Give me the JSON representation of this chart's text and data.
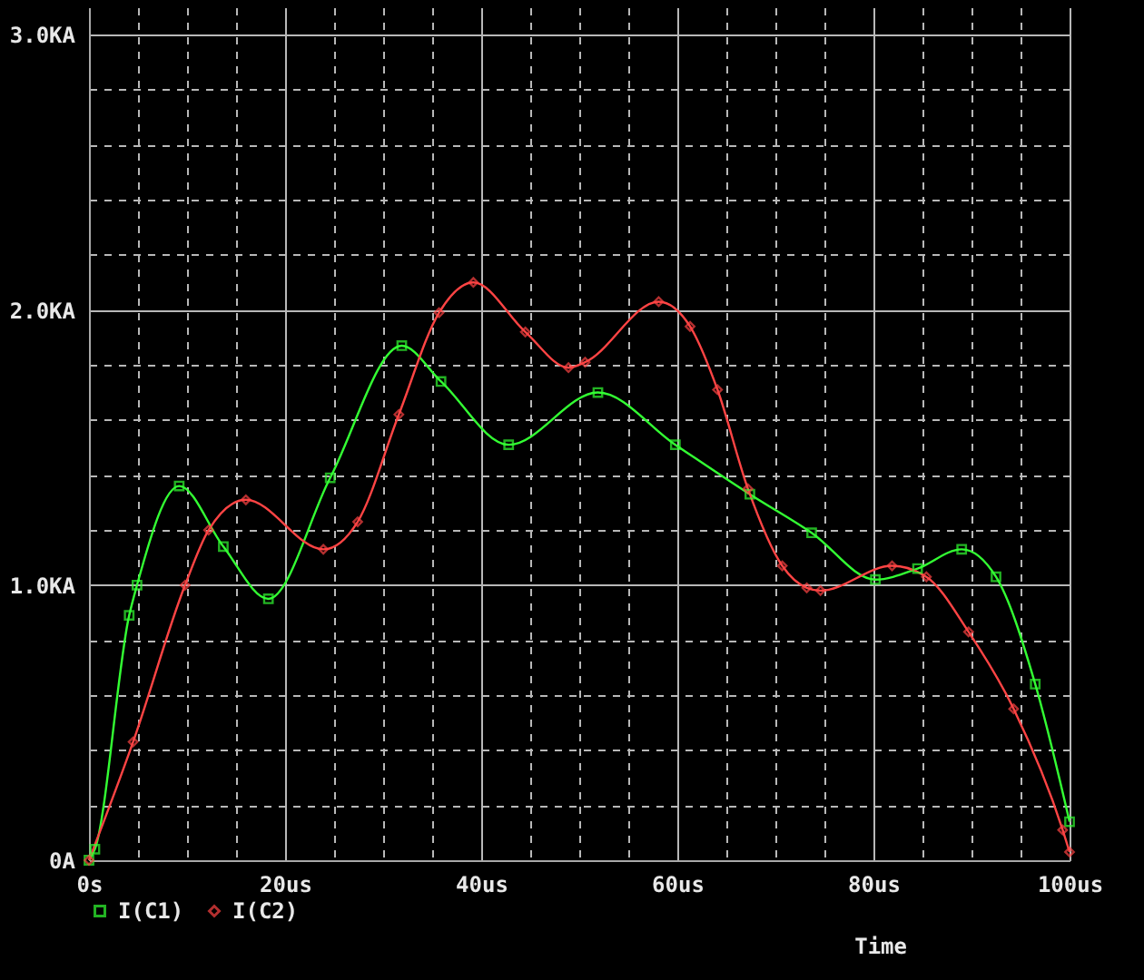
{
  "chart_data": {
    "type": "line",
    "xlabel": "Time",
    "legend": "bottom left",
    "grid": true,
    "line_style": "solid",
    "xlim": [
      0,
      100
    ],
    "ylim": [
      0,
      3.1
    ],
    "xticks": [
      {
        "value": 0,
        "label": "0s"
      },
      {
        "value": 5,
        "label": null
      },
      {
        "value": 10,
        "label": null
      },
      {
        "value": 15,
        "label": null
      },
      {
        "value": 20,
        "label": "20us"
      },
      {
        "value": 25,
        "label": null
      },
      {
        "value": 30,
        "label": null
      },
      {
        "value": 35,
        "label": null
      },
      {
        "value": 40,
        "label": "40us"
      },
      {
        "value": 45,
        "label": null
      },
      {
        "value": 50,
        "label": null
      },
      {
        "value": 55,
        "label": null
      },
      {
        "value": 60,
        "label": "60us"
      },
      {
        "value": 65,
        "label": null
      },
      {
        "value": 70,
        "label": null
      },
      {
        "value": 75,
        "label": null
      },
      {
        "value": 80,
        "label": "80us"
      },
      {
        "value": 85,
        "label": null
      },
      {
        "value": 90,
        "label": null
      },
      {
        "value": 95,
        "label": null
      },
      {
        "value": 100,
        "label": "100us"
      }
    ],
    "yticks": [
      {
        "value": 0,
        "label": "0A"
      },
      {
        "value": 0.2,
        "label": null
      },
      {
        "value": 0.4,
        "label": null
      },
      {
        "value": 0.6,
        "label": null
      },
      {
        "value": 0.8,
        "label": null
      },
      {
        "value": 1,
        "label": "1.0KA"
      },
      {
        "value": 1.2,
        "label": null
      },
      {
        "value": 1.4,
        "label": null
      },
      {
        "value": 1.6,
        "label": null
      },
      {
        "value": 1.8,
        "label": null
      },
      {
        "value": 2,
        "label": "2.0KA"
      },
      {
        "value": 2.2,
        "label": null
      },
      {
        "value": 2.4,
        "label": null
      },
      {
        "value": 2.6,
        "label": null
      },
      {
        "value": 2.8,
        "label": null
      },
      {
        "value": 3,
        "label": "3.0KA"
      }
    ],
    "series": [
      {
        "name": "I(C1)",
        "color": "#33ff33",
        "marker": "square",
        "x": [
          0,
          0.6,
          4.1,
          4.9,
          9.2,
          13.7,
          18.3,
          24.6,
          31.9,
          35.9,
          42.8,
          51.9,
          59.8,
          67.4,
          73.7,
          80.2,
          84.5,
          89.0,
          92.5,
          96.5,
          100
        ],
        "values": [
          0,
          0.04,
          0.89,
          1.0,
          1.36,
          1.14,
          0.95,
          1.39,
          1.87,
          1.74,
          1.51,
          1.7,
          1.51,
          1.33,
          1.19,
          1.02,
          1.06,
          1.13,
          1.03,
          0.64,
          0.14
        ]
      },
      {
        "name": "I(C2)",
        "color": "#ff4444",
        "marker": "diamond",
        "x": [
          0,
          4.5,
          9.8,
          12.2,
          16.0,
          23.9,
          27.4,
          31.6,
          35.7,
          39.2,
          44.5,
          48.9,
          50.6,
          58.1,
          61.3,
          64.1,
          67.2,
          70.7,
          73.2,
          74.6,
          81.9,
          85.4,
          89.7,
          94.3,
          99.3,
          100
        ],
        "values": [
          0,
          0.43,
          1.0,
          1.2,
          1.31,
          1.13,
          1.23,
          1.62,
          1.99,
          2.1,
          1.92,
          1.79,
          1.81,
          2.03,
          1.94,
          1.71,
          1.35,
          1.07,
          0.99,
          0.98,
          1.07,
          1.03,
          0.83,
          0.55,
          0.11,
          0.03
        ]
      }
    ]
  }
}
